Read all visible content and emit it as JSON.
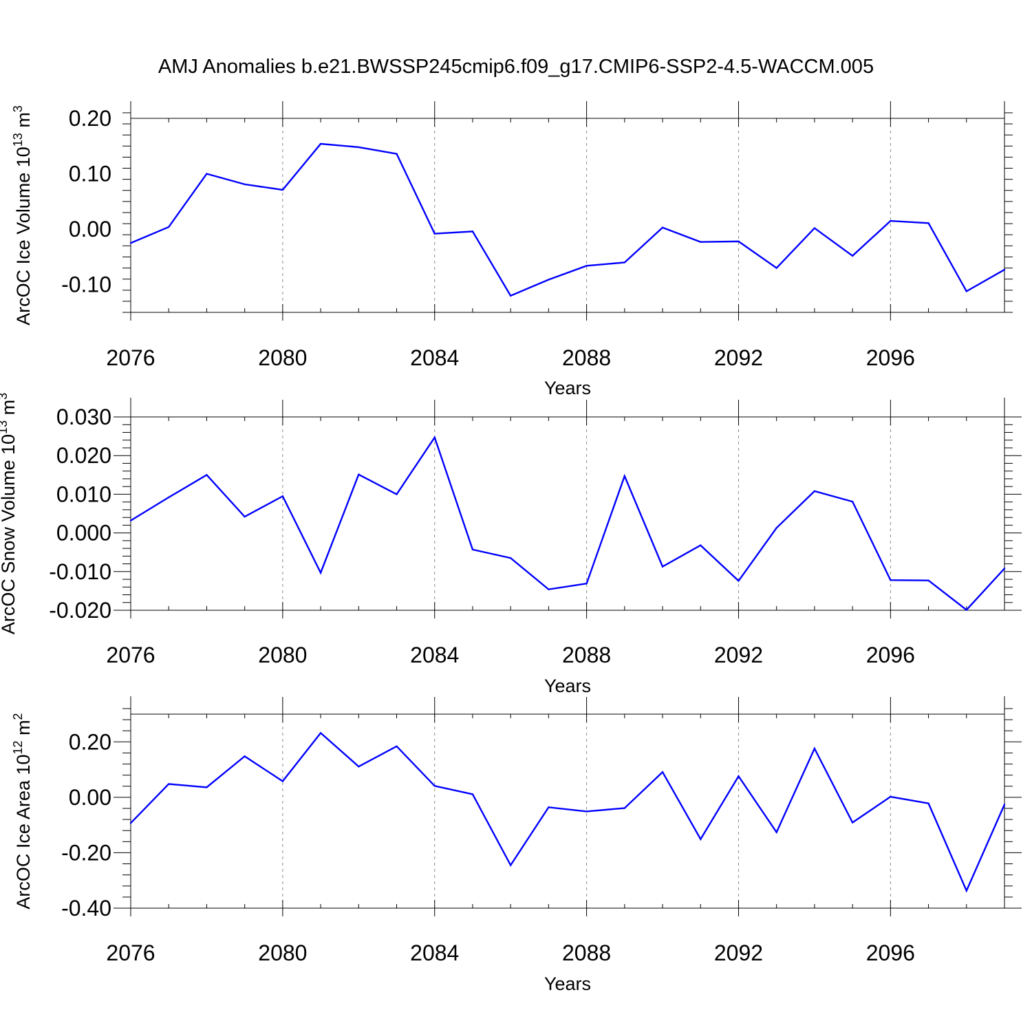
{
  "title": "AMJ Anomalies b.e21.BWSSP245cmip6.f09_g17.CMIP6-SSP2-4.5-WACCM.005",
  "colors": {
    "line": "#0000ff",
    "axis": "#000000",
    "grid": "#888888",
    "background": "#ffffff"
  },
  "chart_data": [
    {
      "type": "line",
      "title": "AMJ Anomalies b.e21.BWSSP245cmip6.f09_g17.CMIP6-SSP2-4.5-WACCM.005",
      "xlabel": "Years",
      "ylabel": {
        "text": "ArcOC Ice Volume 10",
        "exp": "13",
        "unit": " m",
        "unit_exp": "3"
      },
      "xlim": [
        2076,
        2099
      ],
      "ylim": [
        -0.15,
        0.2
      ],
      "yticks": [
        -0.1,
        0.0,
        0.1,
        0.2
      ],
      "ytick_labels": [
        "-0.10",
        "0.00",
        "0.10",
        "0.20"
      ],
      "xticks": [
        2076,
        2080,
        2084,
        2088,
        2092,
        2096
      ],
      "xtick_labels": [
        "2076",
        "2080",
        "2084",
        "2088",
        "2092",
        "2096"
      ],
      "x": [
        2076,
        2077,
        2078,
        2079,
        2080,
        2081,
        2082,
        2083,
        2084,
        2085,
        2086,
        2087,
        2088,
        2089,
        2090,
        2091,
        2092,
        2093,
        2094,
        2095,
        2096,
        2097,
        2098,
        2099
      ],
      "series": [
        {
          "name": "ArcOC Ice Volume",
          "values": [
            -0.025,
            0.004,
            0.1,
            0.081,
            0.071,
            0.154,
            0.148,
            0.136,
            -0.008,
            -0.004,
            -0.12,
            -0.091,
            -0.066,
            -0.06,
            0.003,
            -0.023,
            -0.022,
            -0.07,
            0.002,
            -0.048,
            0.015,
            0.011,
            -0.112,
            -0.073
          ]
        }
      ]
    },
    {
      "type": "line",
      "xlabel": "Years",
      "ylabel": {
        "text": "ArcOC Snow Volume 10",
        "exp": "13",
        "unit": " m",
        "unit_exp": "3"
      },
      "xlim": [
        2076,
        2099
      ],
      "ylim": [
        -0.02,
        0.03
      ],
      "yticks": [
        -0.02,
        -0.01,
        0.0,
        0.01,
        0.02,
        0.03
      ],
      "ytick_labels": [
        "-0.020",
        "-0.010",
        "0.000",
        "0.010",
        "0.020",
        "0.030"
      ],
      "xticks": [
        2076,
        2080,
        2084,
        2088,
        2092,
        2096
      ],
      "xtick_labels": [
        "2076",
        "2080",
        "2084",
        "2088",
        "2092",
        "2096"
      ],
      "x": [
        2076,
        2077,
        2078,
        2079,
        2080,
        2081,
        2082,
        2083,
        2084,
        2085,
        2086,
        2087,
        2088,
        2089,
        2090,
        2091,
        2092,
        2093,
        2094,
        2095,
        2096,
        2097,
        2098,
        2099
      ],
      "series": [
        {
          "name": "ArcOC Snow Volume",
          "values": [
            0.0032,
            0.0092,
            0.015,
            0.0042,
            0.0095,
            -0.0103,
            0.0151,
            0.01,
            0.0247,
            -0.0043,
            -0.0065,
            -0.0146,
            -0.0131,
            0.0147,
            -0.0087,
            -0.0032,
            -0.0124,
            0.0013,
            0.0108,
            0.0081,
            -0.0122,
            -0.0123,
            -0.0199,
            -0.0092
          ]
        }
      ]
    },
    {
      "type": "line",
      "xlabel": "Years",
      "ylabel": {
        "text": "ArcOC Ice Area 10",
        "exp": "12",
        "unit": " m",
        "unit_exp": "2"
      },
      "xlim": [
        2076,
        2099
      ],
      "ylim": [
        -0.4,
        0.3
      ],
      "yticks": [
        -0.4,
        -0.2,
        0.0,
        0.2
      ],
      "ytick_labels": [
        "-0.40",
        "-0.20",
        "0.00",
        "0.20"
      ],
      "xticks": [
        2076,
        2080,
        2084,
        2088,
        2092,
        2096
      ],
      "xtick_labels": [
        "2076",
        "2080",
        "2084",
        "2088",
        "2092",
        "2096"
      ],
      "x": [
        2076,
        2077,
        2078,
        2079,
        2080,
        2081,
        2082,
        2083,
        2084,
        2085,
        2086,
        2087,
        2088,
        2089,
        2090,
        2091,
        2092,
        2093,
        2094,
        2095,
        2096,
        2097,
        2098,
        2099
      ],
      "series": [
        {
          "name": "ArcOC Ice Area",
          "values": [
            -0.093,
            0.048,
            0.036,
            0.148,
            0.058,
            0.232,
            0.111,
            0.184,
            0.041,
            0.011,
            -0.245,
            -0.036,
            -0.051,
            -0.039,
            0.091,
            -0.151,
            0.076,
            -0.126,
            0.176,
            -0.091,
            0.002,
            -0.022,
            -0.337,
            -0.026
          ]
        }
      ]
    }
  ]
}
